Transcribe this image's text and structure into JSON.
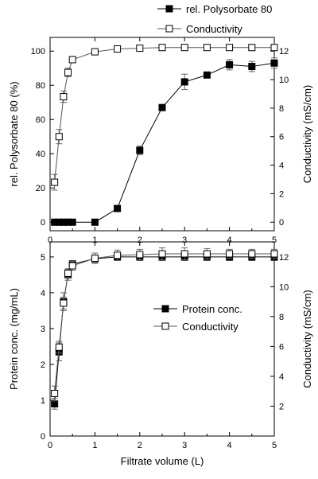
{
  "chart_data": [
    {
      "type": "line",
      "panel": "top",
      "x_range": [
        0,
        5
      ],
      "x_ticks": [
        0,
        1,
        2,
        3,
        4,
        5
      ],
      "y_left_label": "rel. Polysorbate 80 (%)",
      "y_left_range": [
        -5,
        108
      ],
      "y_left_ticks": [
        0,
        20,
        40,
        60,
        80,
        100
      ],
      "y_right_label": "Conductivity (mS/cm)",
      "y_right_range": [
        -0.6,
        12.96
      ],
      "y_right_ticks": [
        0,
        2,
        4,
        6,
        8,
        10,
        12
      ],
      "legend_position": "top-right, outside above plot",
      "series": [
        {
          "name": "rel. Polysorbate 80",
          "marker": "filled-square",
          "axis": "left",
          "x": [
            0.1,
            0.2,
            0.3,
            0.4,
            0.5,
            1.0,
            1.5,
            2.0,
            2.5,
            3.0,
            3.5,
            4.0,
            4.5,
            5.0
          ],
          "y": [
            0,
            0,
            0,
            0,
            0,
            0,
            8,
            42,
            67,
            82,
            86,
            92,
            91,
            93
          ],
          "err": [
            0,
            0,
            0,
            0,
            0,
            0,
            0.5,
            2.5,
            1.5,
            4.5,
            1.5,
            3,
            3,
            3
          ]
        },
        {
          "name": "Conductivity",
          "marker": "open-square",
          "axis": "right",
          "x": [
            0.1,
            0.2,
            0.3,
            0.4,
            0.5,
            1.0,
            1.5,
            2.0,
            2.5,
            3.0,
            3.5,
            4.0,
            4.5,
            5.0
          ],
          "y": [
            2.8,
            6.0,
            8.8,
            10.5,
            11.4,
            11.95,
            12.15,
            12.2,
            12.25,
            12.25,
            12.25,
            12.25,
            12.25,
            12.25
          ],
          "err": [
            0.55,
            0.5,
            0.4,
            0.3,
            0.2,
            0.15,
            0.12,
            0.12,
            0.12,
            0.12,
            0.12,
            0.12,
            0.12,
            0.12
          ]
        }
      ]
    },
    {
      "type": "line",
      "panel": "bottom",
      "xlabel": "Filtrate volume (L)",
      "x_range": [
        0,
        5
      ],
      "x_ticks": [
        0,
        1,
        2,
        3,
        4,
        5
      ],
      "y_left_label": "Protein conc. (mg/mL)",
      "y_left_range": [
        0,
        5.42
      ],
      "y_left_ticks": [
        0,
        1,
        2,
        3,
        4,
        5
      ],
      "y_right_label": "Conductivity (mS/cm)",
      "y_right_range": [
        0,
        13.0
      ],
      "y_right_ticks": [
        2,
        4,
        6,
        8,
        10,
        12
      ],
      "legend_position": "upper middle inside plot",
      "series": [
        {
          "name": "Protein conc.",
          "marker": "filled-square",
          "axis": "left",
          "x": [
            0.1,
            0.2,
            0.3,
            0.4,
            0.5,
            1.0,
            1.5,
            2.0,
            2.5,
            3.0,
            3.5,
            4.0,
            4.5,
            5.0
          ],
          "y": [
            0.9,
            2.35,
            3.75,
            4.5,
            4.8,
            4.95,
            5.0,
            5.0,
            5.0,
            5.0,
            5.0,
            5.0,
            5.0,
            5.0
          ],
          "err": [
            0.15,
            0.25,
            0.25,
            0.15,
            0.1,
            0.1,
            0.1,
            0.1,
            0.1,
            0.1,
            0.1,
            0.1,
            0.1,
            0.1
          ]
        },
        {
          "name": "Conductivity",
          "marker": "open-square",
          "axis": "right",
          "x": [
            0.1,
            0.2,
            0.3,
            0.4,
            0.5,
            1.0,
            1.5,
            2.0,
            2.5,
            3.0,
            3.5,
            4.0,
            4.5,
            5.0
          ],
          "y": [
            2.85,
            5.95,
            8.9,
            10.9,
            11.4,
            11.9,
            12.1,
            12.15,
            12.2,
            12.2,
            12.2,
            12.2,
            12.2,
            12.2
          ],
          "err": [
            0.5,
            0.4,
            0.4,
            0.3,
            0.3,
            0.35,
            0.35,
            0.35,
            0.4,
            0.4,
            0.35,
            0.3,
            0.3,
            0.3
          ]
        }
      ]
    }
  ]
}
